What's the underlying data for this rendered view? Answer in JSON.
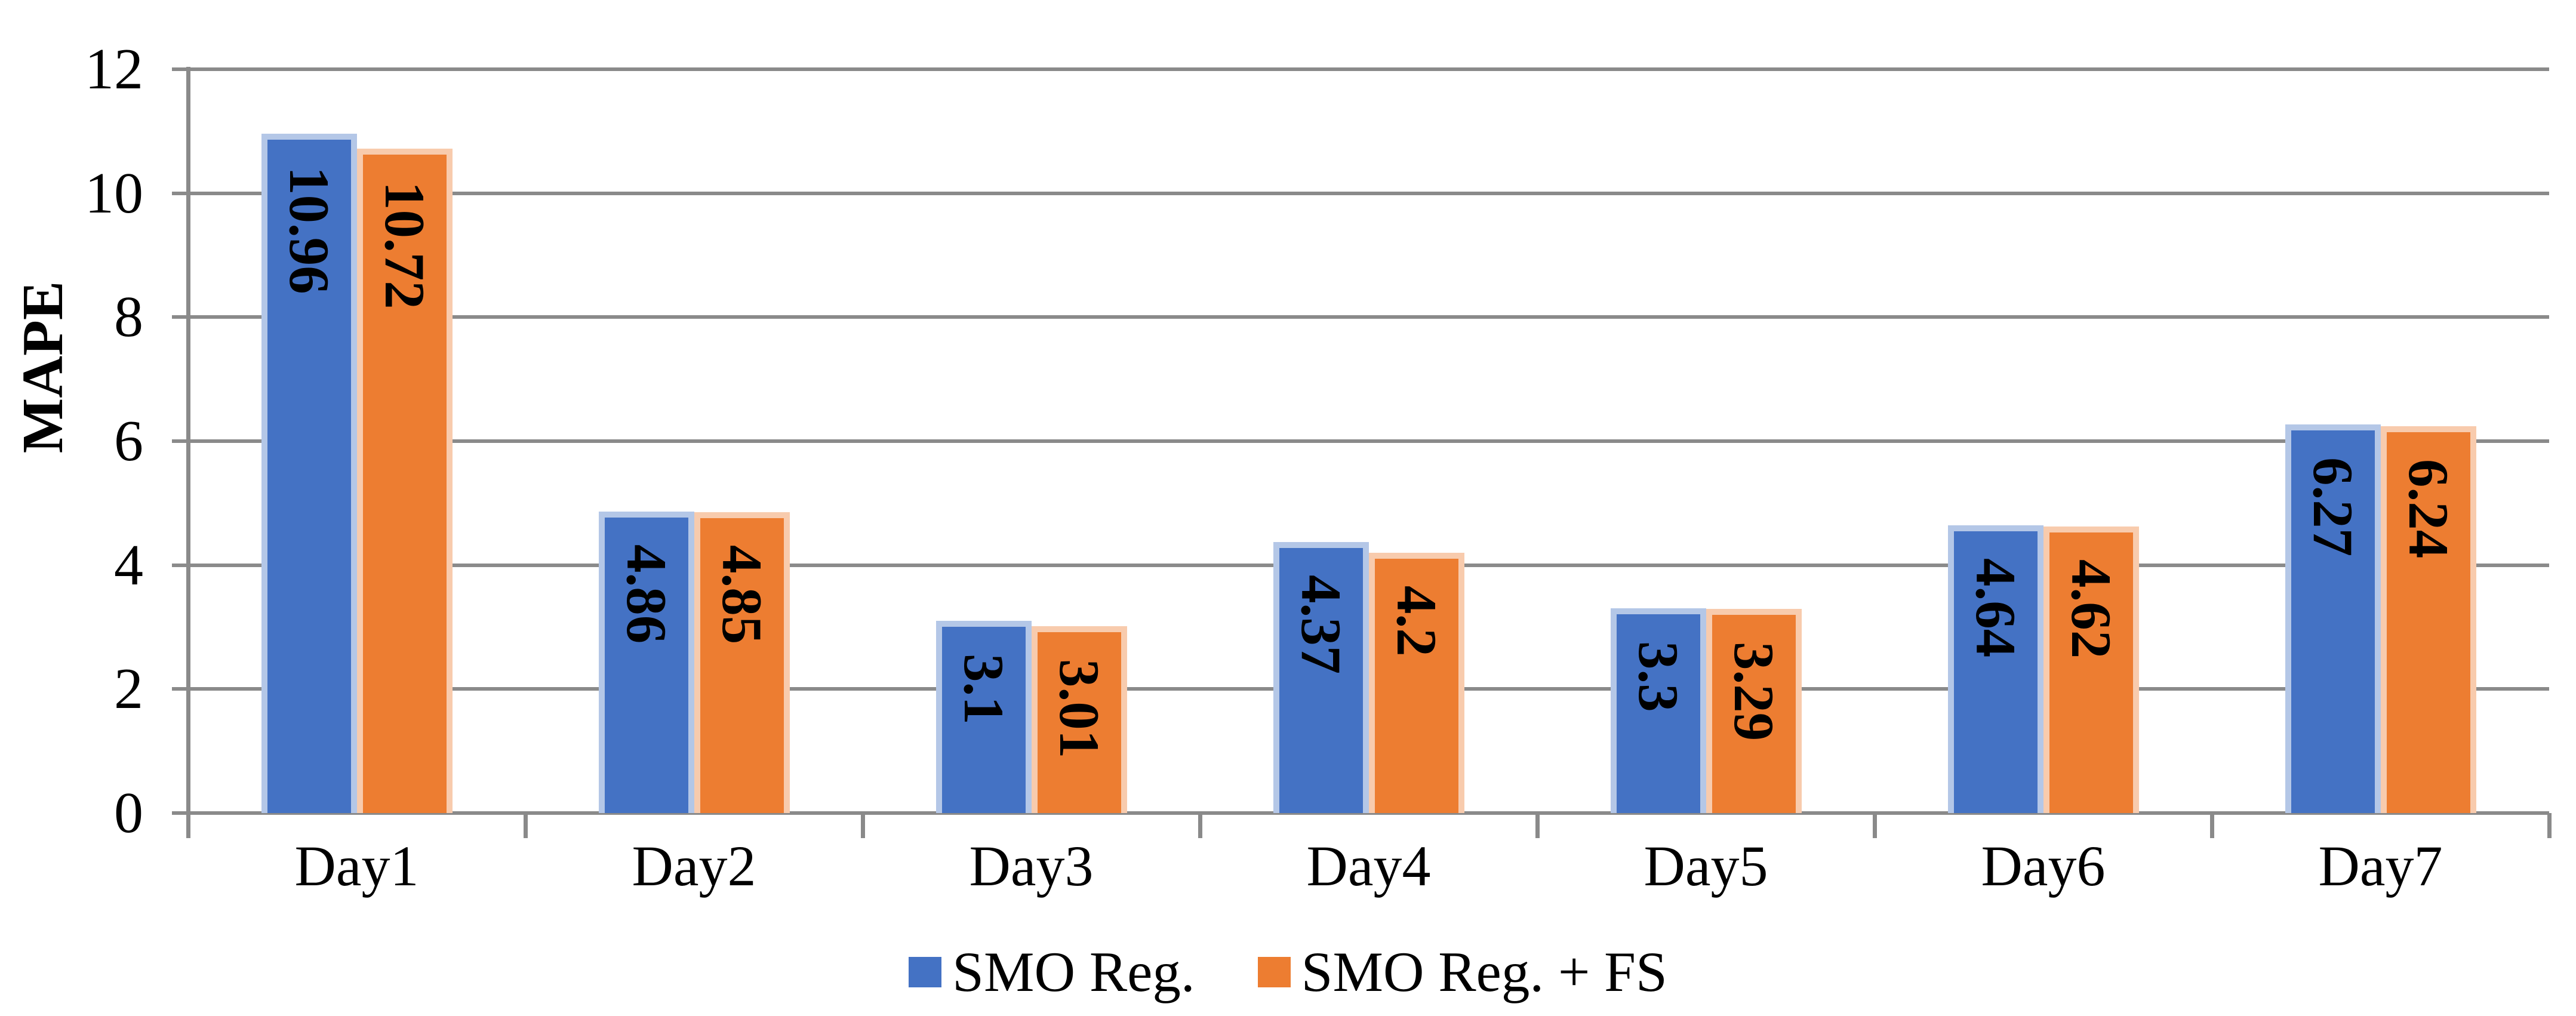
{
  "chart_data": {
    "type": "bar",
    "ylabel": "MAPE",
    "categories": [
      "Day1",
      "Day2",
      "Day3",
      "Day4",
      "Day5",
      "Day6",
      "Day7"
    ],
    "series": [
      {
        "name": "SMO Reg.",
        "color": "#4472C4",
        "edge_color": "#B4C7E7",
        "values": [
          10.96,
          4.86,
          3.1,
          4.37,
          3.3,
          4.64,
          6.27
        ]
      },
      {
        "name": "SMO Reg. + FS",
        "color": "#ED7D31",
        "edge_color": "#F8CBAD",
        "values": [
          10.72,
          4.85,
          3.01,
          4.2,
          3.29,
          4.62,
          6.24
        ]
      }
    ],
    "value_labels": [
      [
        "10.96",
        "4.86",
        "3.1",
        "4.37",
        "3.3",
        "4.64",
        "6.27"
      ],
      [
        "10.72",
        "4.85",
        "3.01",
        "4.2",
        "3.29",
        "4.62",
        "6.24"
      ]
    ],
    "ylim": [
      0,
      12
    ],
    "yticks": [
      0,
      2,
      4,
      6,
      8,
      10,
      12
    ],
    "grid": true,
    "legend_position": "bottom",
    "colors": {
      "gridline": "#8A8A8A",
      "axis": "#8A8A8A",
      "text": "#000000",
      "background": "#FFFFFF"
    }
  }
}
